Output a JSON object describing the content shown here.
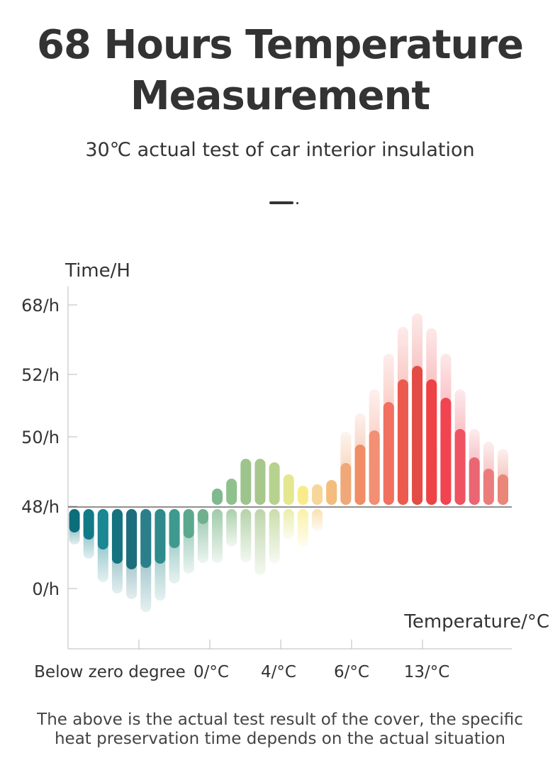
{
  "header": {
    "title_line1": "68 Hours Temperature",
    "title_line2": "Measurement",
    "subtitle": "30℃ actual test of car interior insulation"
  },
  "footer": {
    "line1": "The above is the actual test result of the cover, the specific",
    "line2": "heat preservation time depends on the actual situation"
  },
  "colors": {
    "text": "#333333",
    "axis": "#bbbbbb",
    "baseline": "#222222",
    "teal_dark": "#0b6e7a",
    "green": "#8fbf8f",
    "yellow": "#f8ec8a",
    "orange": "#f4a06c",
    "red": "#ef3b48",
    "pink": "#ec7c78"
  },
  "chart_data": {
    "type": "bar",
    "ylabel": "Time/H",
    "xlabel": "Temperature/°C",
    "y_tick_labels": [
      "68/h",
      "52/h",
      "50/h",
      "48/h",
      "0/h"
    ],
    "x_tick_labels": [
      "Below zero degree",
      "0/°C",
      "4/°C",
      "6/°C",
      "13/°C"
    ],
    "baseline_label": "48/h",
    "note": "Values are relative bar lengths in chart units; positive = above the 48/h baseline, negative = below it. Each bar has a solid core and a lighter faded extension.",
    "bars": [
      {
        "core": -3.6,
        "extended": -5.3,
        "color": "#0b6e7a"
      },
      {
        "core": -4.6,
        "extended": -7.3,
        "color": "#107b86"
      },
      {
        "core": -6.0,
        "extended": -10.6,
        "color": "#1a8793"
      },
      {
        "core": -8.0,
        "extended": -12.2,
        "color": "#15727f"
      },
      {
        "core": -8.8,
        "extended": -13.0,
        "color": "#1c6e7c"
      },
      {
        "core": -8.6,
        "extended": -14.8,
        "color": "#2a7f8a"
      },
      {
        "core": -8.0,
        "extended": -13.2,
        "color": "#2e8a8b"
      },
      {
        "core": -5.8,
        "extended": -10.8,
        "color": "#3e9a8e"
      },
      {
        "core": -4.4,
        "extended": -9.4,
        "color": "#5aa98e"
      },
      {
        "core": -2.4,
        "extended": -7.9,
        "color": "#6fb08e"
      },
      {
        "core": 2.6,
        "extended": -7.9,
        "color": "#80b98e"
      },
      {
        "core": 4.0,
        "extended": -5.6,
        "color": "#8fc08e"
      },
      {
        "core": 6.8,
        "extended": -7.8,
        "color": "#9cc48c"
      },
      {
        "core": 6.8,
        "extended": -9.6,
        "color": "#a7c78d"
      },
      {
        "core": 6.3,
        "extended": -7.9,
        "color": "#b7d28f"
      },
      {
        "core": 4.6,
        "extended": -4.6,
        "color": "#e3e88e"
      },
      {
        "core": 3.0,
        "extended": -5.6,
        "color": "#f8ec8a"
      },
      {
        "core": 3.2,
        "extended": -3.4,
        "color": "#f7d69a"
      },
      {
        "core": 3.8,
        "extended": 3.8,
        "color": "#f4bd7c"
      },
      {
        "core": 6.2,
        "extended": 10.6,
        "color": "#f0a878"
      },
      {
        "core": 8.8,
        "extended": 13.2,
        "color": "#f08c66"
      },
      {
        "core": 10.8,
        "extended": 16.6,
        "color": "#f28f74"
      },
      {
        "core": 14.8,
        "extended": 21.6,
        "color": "#f1705f"
      },
      {
        "core": 18.0,
        "extended": 25.4,
        "color": "#ec5a4f"
      },
      {
        "core": 19.9,
        "extended": 27.3,
        "color": "#e34b45"
      },
      {
        "core": 18.0,
        "extended": 25.2,
        "color": "#ee4245"
      },
      {
        "core": 15.4,
        "extended": 21.6,
        "color": "#f24450"
      },
      {
        "core": 11.0,
        "extended": 16.6,
        "color": "#ef5260"
      },
      {
        "core": 7.0,
        "extended": 11.0,
        "color": "#ea6672"
      },
      {
        "core": 5.4,
        "extended": 9.2,
        "color": "#ec7c7c"
      },
      {
        "core": 4.6,
        "extended": 8.2,
        "color": "#e98678"
      }
    ]
  }
}
